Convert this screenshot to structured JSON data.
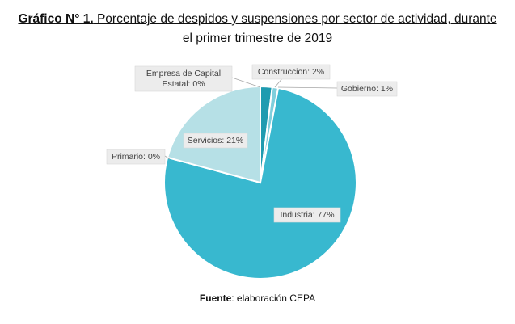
{
  "title": {
    "lead": "Gráfico N° 1.",
    "line1_rest": " Porcentaje de despidos y suspensiones por sector de actividad, durante",
    "line2": "el primer trimestre de 2019"
  },
  "source": {
    "lead": "Fuente",
    "rest": ": elaboración CEPA"
  },
  "chart_data": {
    "type": "pie",
    "title": "Porcentaje de despidos y suspensiones por sector de actividad, durante el primer trimestre de 2019",
    "slices": [
      {
        "name": "Construccion",
        "value": 2,
        "label": "Construccion: 2%",
        "color": "#1f9bb0"
      },
      {
        "name": "Gobierno",
        "value": 1,
        "label": "Gobierno: 1%",
        "color": "#7fcfdc"
      },
      {
        "name": "Industria",
        "value": 77,
        "label": "Industria: 77%",
        "color": "#38b8cf"
      },
      {
        "name": "Primario",
        "value": 0,
        "label": "Primario: 0%",
        "color": "#2a8ea0"
      },
      {
        "name": "Servicios",
        "value": 21,
        "label": "Servicios: 21%",
        "color": "#b6e0e6"
      },
      {
        "name": "Empresa de Capital Estatal",
        "value": 0,
        "label_lines": [
          "Empresa de Capital",
          "Estatal: 0%"
        ],
        "color": "#d0ecf0"
      }
    ],
    "start_angle_deg": 0,
    "direction": "clockwise",
    "legend": "none"
  }
}
